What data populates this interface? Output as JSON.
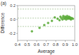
{
  "chart_data": {
    "type": "scatter",
    "title": "(a)",
    "x_label": "Average",
    "y_label": "Difference",
    "x": [
      0.55,
      0.63,
      0.68,
      0.72,
      0.76,
      0.79,
      0.82,
      0.84,
      0.85,
      0.86,
      0.87,
      0.88,
      0.88,
      0.89,
      0.9,
      0.9,
      0.91,
      0.91,
      0.92,
      0.92,
      0.93,
      0.93,
      0.94,
      0.94,
      0.95,
      0.95,
      0.96,
      0.96,
      0.97,
      0.98
    ],
    "values": [
      -0.17,
      -0.12,
      -0.08,
      -0.05,
      -0.02,
      0.03,
      0.01,
      -0.01,
      0.04,
      0.02,
      0.0,
      0.03,
      0.05,
      0.01,
      0.02,
      0.04,
      0.0,
      0.03,
      0.02,
      0.05,
      0.01,
      0.03,
      0.02,
      0.04,
      0.01,
      0.03,
      0.02,
      0.0,
      0.02,
      0.01
    ],
    "hlines": [
      0.15,
      0.02,
      -0.1
    ],
    "color": "#5cab3a",
    "marker": "circle",
    "xlim": [
      0.4,
      1.0
    ],
    "xticks": [
      0.4,
      0.5,
      0.6,
      0.7,
      0.8,
      0.9,
      {
        "value": 1.0,
        "label": "1.0"
      }
    ],
    "ylim": [
      -0.3,
      0.2
    ],
    "yticks": [
      -0.2,
      {
        "value": 0,
        "label": "0.0"
      },
      0.2
    ],
    "grid": false
  }
}
